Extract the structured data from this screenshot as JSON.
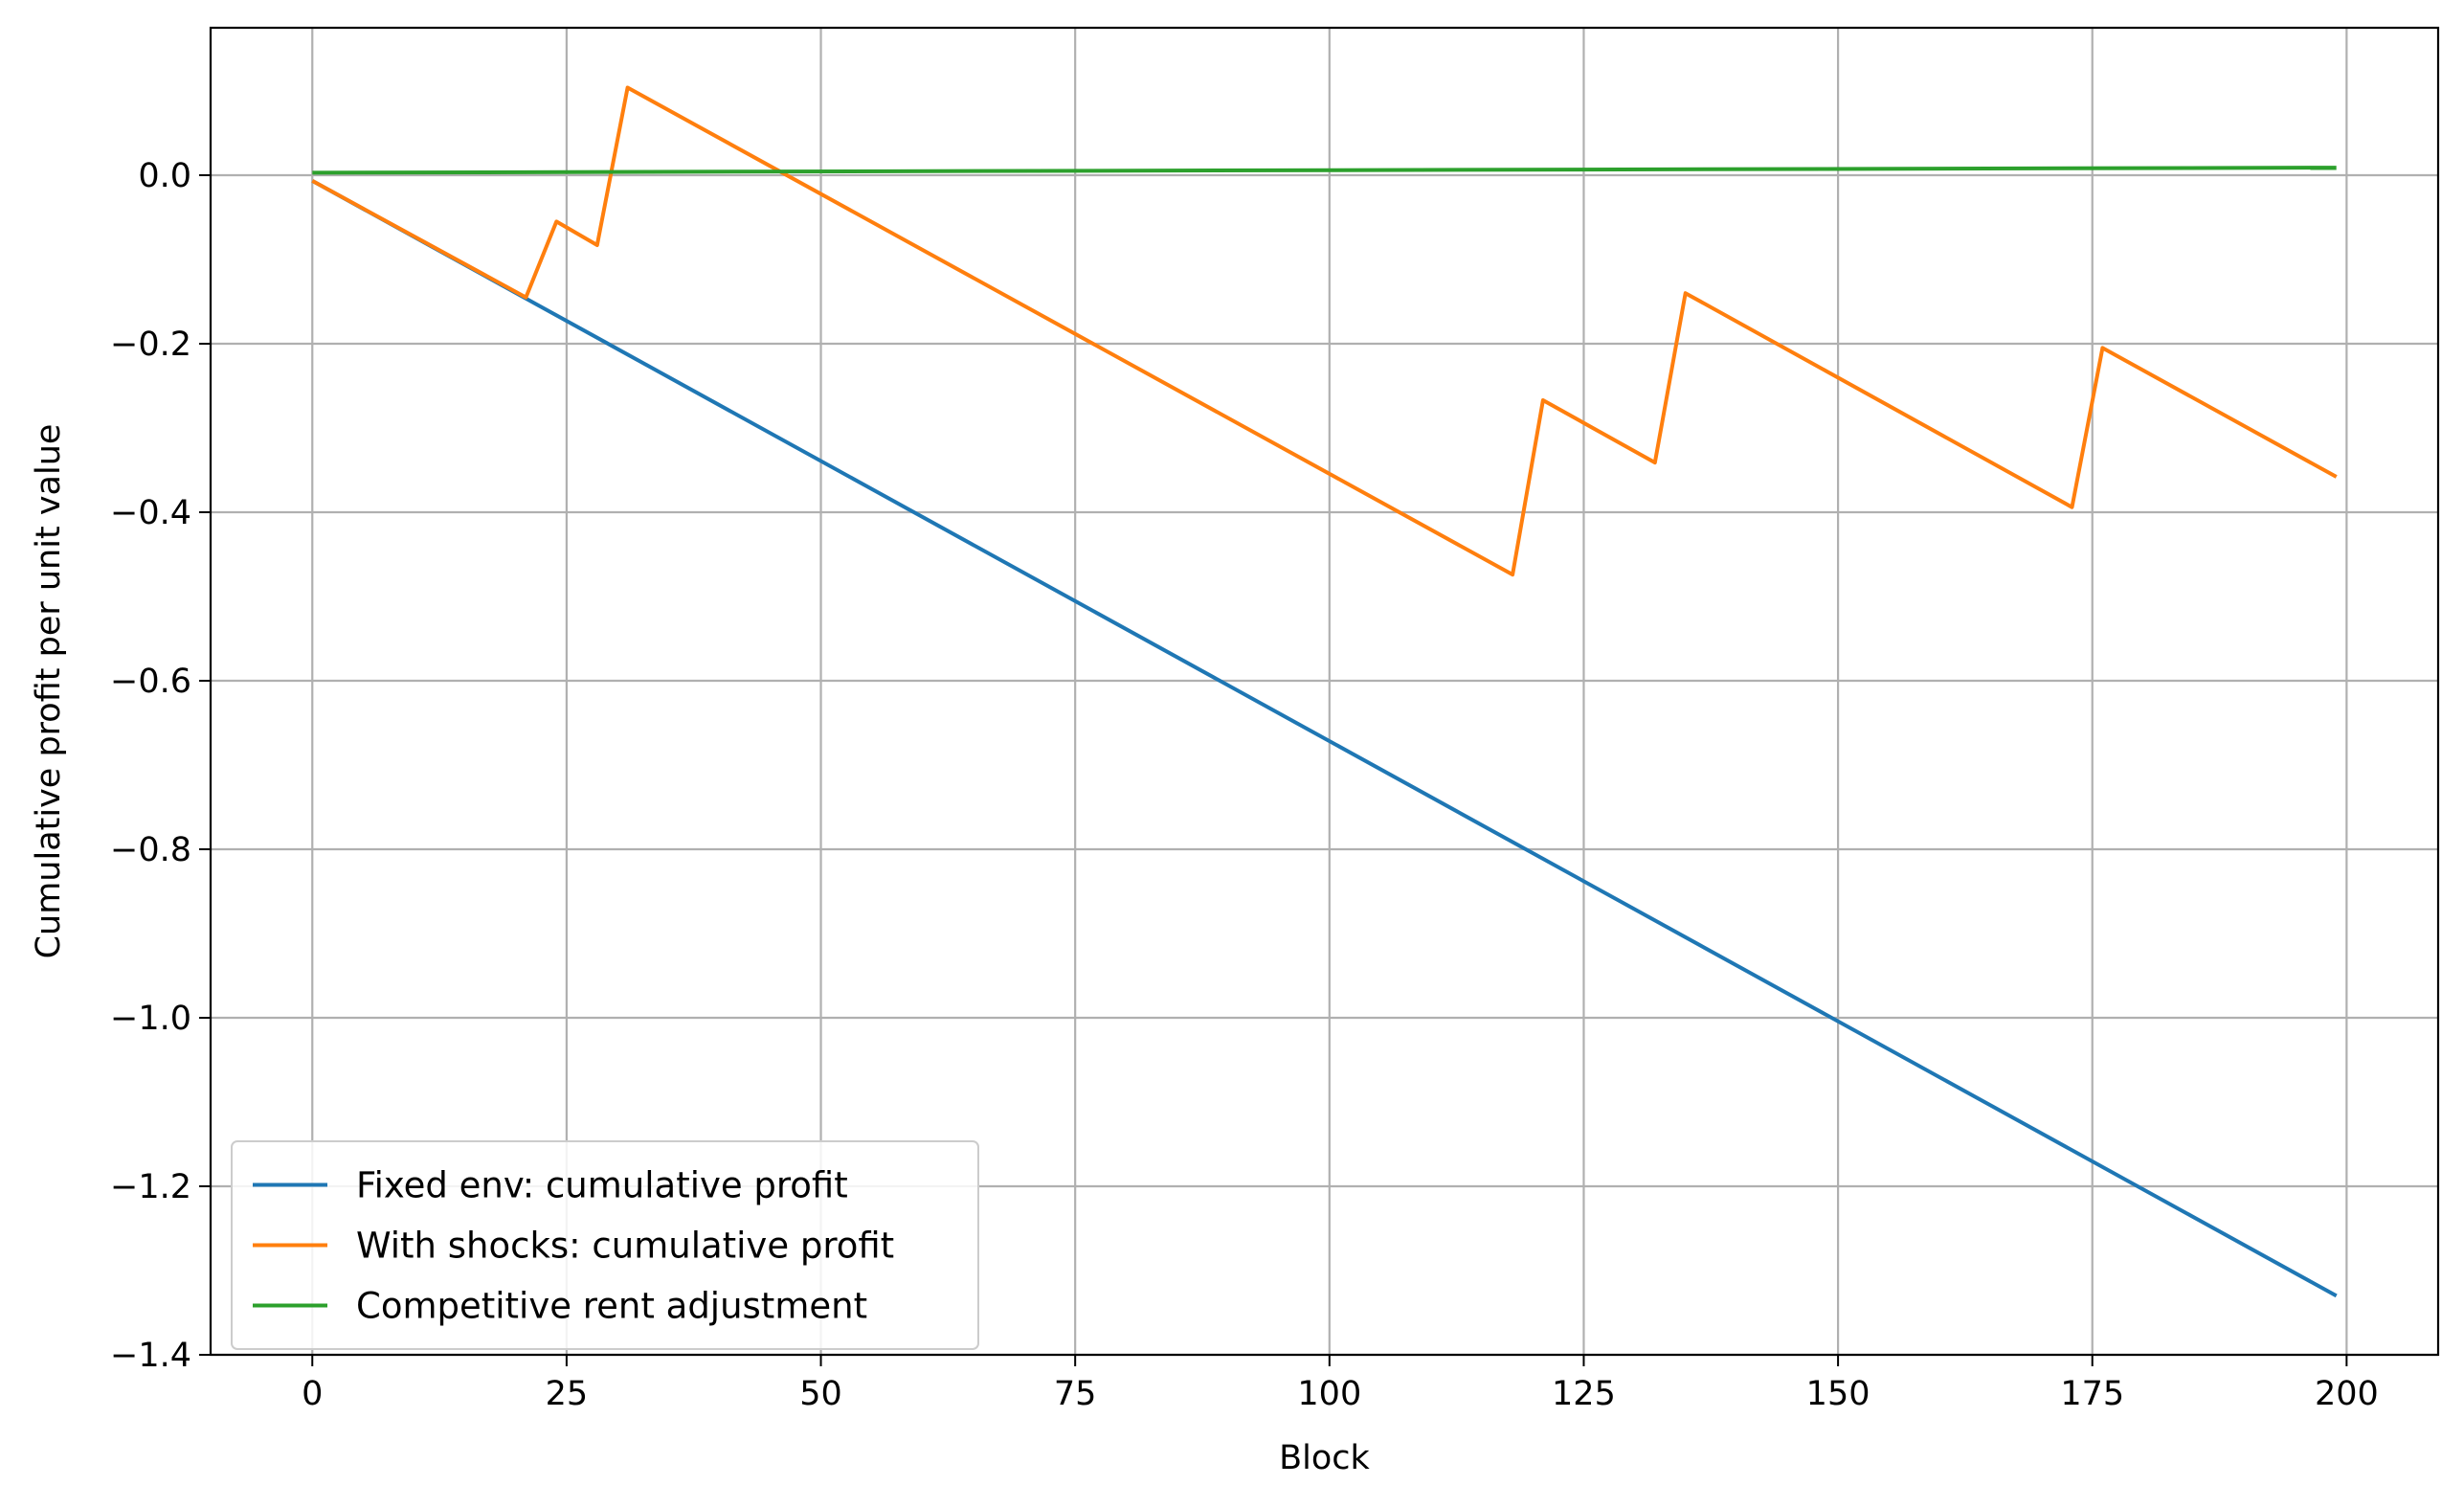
{
  "chart_data": {
    "type": "line",
    "title": "",
    "xlabel": "Block",
    "ylabel": "Cumulative profit per unit value",
    "xlim": [
      -10,
      209
    ],
    "ylim": [
      -1.4,
      0.175
    ],
    "xticks": [
      0,
      25,
      50,
      75,
      100,
      125,
      150,
      175,
      200
    ],
    "yticks": [
      0.0,
      -0.2,
      -0.4,
      -0.6,
      -0.8,
      -1.0,
      -1.2,
      -1.4
    ],
    "xtick_labels": [
      "0",
      "25",
      "50",
      "75",
      "100",
      "125",
      "150",
      "175",
      "200"
    ],
    "ytick_labels": [
      "0.0",
      "−0.2",
      "−0.4",
      "−0.6",
      "−0.8",
      "−1.0",
      "−1.2",
      "−1.4"
    ],
    "grid": true,
    "legend_position": "lower-left",
    "series": [
      {
        "name": "Fixed env: cumulative profit",
        "color": "#1f77b4",
        "x": [
          0,
          199
        ],
        "y": [
          -0.0067,
          -1.33
        ]
      },
      {
        "name": "With shocks: cumulative profit",
        "color": "#ff7f0e",
        "x": [
          0,
          21,
          24,
          28,
          31,
          118,
          121,
          132,
          135,
          173,
          176,
          199
        ],
        "y": [
          -0.0067,
          -0.145,
          -0.055,
          -0.083,
          0.104,
          -0.474,
          -0.267,
          -0.341,
          -0.14,
          -0.394,
          -0.205,
          -0.358
        ]
      },
      {
        "name": "Competitive rent adjustment",
        "color": "#2ca02c",
        "x": [
          0,
          199
        ],
        "y": [
          0.003,
          0.009
        ]
      }
    ]
  }
}
